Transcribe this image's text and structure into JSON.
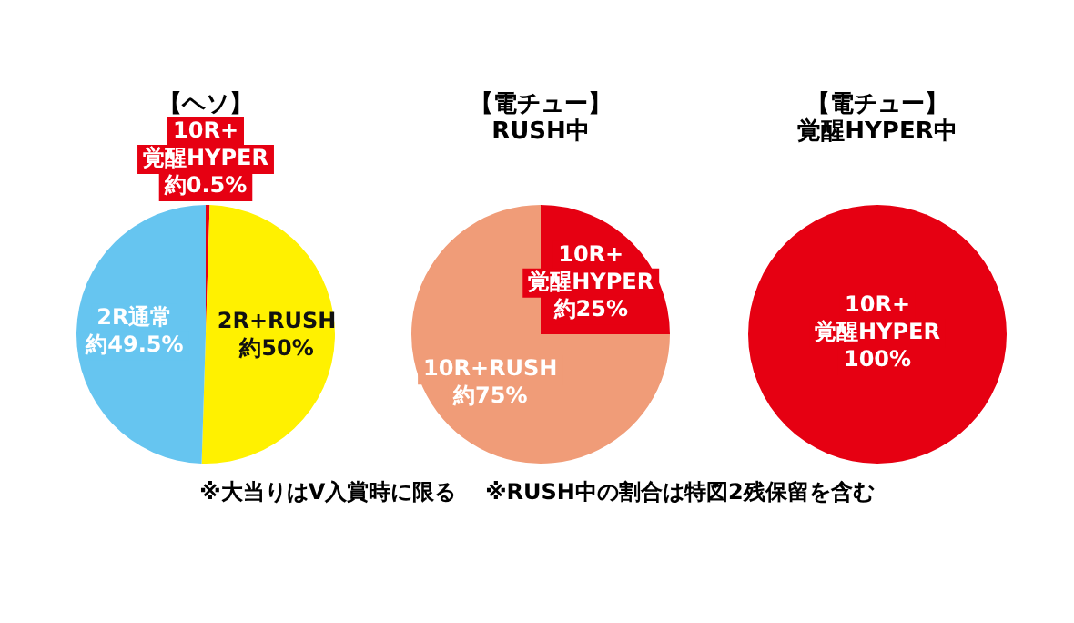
{
  "chart_data": [
    {
      "type": "pie",
      "title": "【ヘソ】",
      "categories": [
        "10R+\n覚醒HYPER",
        "2R+RUSH",
        "2R通常"
      ],
      "values": [
        0.5,
        50,
        49.5
      ],
      "colors": [
        "#e60012",
        "#fff100",
        "#66c5f0"
      ],
      "value_labels": [
        "約0.5%",
        "約50%",
        "約49.5%"
      ],
      "annotations": [
        "※大当りはV入賞時に限る",
        "※RUSH中の割合は特図2残保留を含む"
      ]
    },
    {
      "type": "pie",
      "title": "【電チュー】",
      "subtitle": "RUSH中",
      "categories": [
        "10R+\n覚醒HYPER",
        "10R+RUSH"
      ],
      "values": [
        25,
        75
      ],
      "colors": [
        "#e60012",
        "#f09c78"
      ],
      "value_labels": [
        "約25%",
        "約75%"
      ]
    },
    {
      "type": "pie",
      "title": "【電チュー】",
      "subtitle": "覚醒HYPER中",
      "categories": [
        "10R+\n覚醒HYPER"
      ],
      "values": [
        100
      ],
      "colors": [
        "#e60012"
      ],
      "value_labels": [
        "100%"
      ]
    }
  ]
}
